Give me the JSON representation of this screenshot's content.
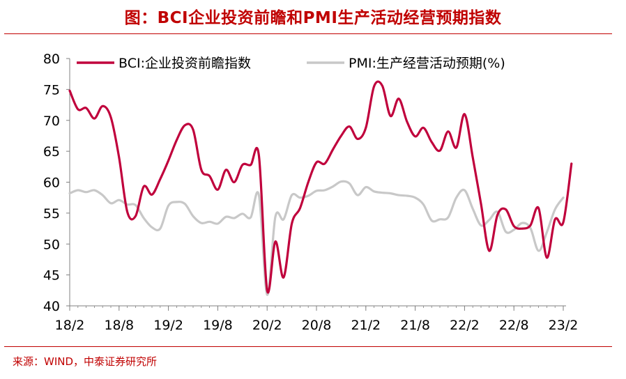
{
  "title": "图：BCI企业投资前瞻和PMI生产活动经营预期指数",
  "source": "来源：WIND，中泰证券研究所",
  "chart_data": {
    "type": "line",
    "title": "",
    "xlabel": "",
    "ylabel": "",
    "ylim": [
      40,
      80
    ],
    "yticks": [
      "40",
      "45",
      "50",
      "55",
      "60",
      "65",
      "70",
      "75",
      "80"
    ],
    "xticks": [
      "18/2",
      "18/8",
      "19/2",
      "19/8",
      "20/2",
      "20/8",
      "21/2",
      "21/8",
      "22/2",
      "22/8",
      "23/2"
    ],
    "x_range": [
      "18/2",
      "23/2"
    ],
    "legend_position": "top",
    "grid": false,
    "series": [
      {
        "name": "BCI:企业投资前瞻指数",
        "color": "#c0003c",
        "points": [
          [
            "18/2",
            74.8
          ],
          [
            "18/3",
            71.8
          ],
          [
            "18/4",
            72.0
          ],
          [
            "18/5",
            70.3
          ],
          [
            "18/6",
            72.3
          ],
          [
            "18/7",
            70.5
          ],
          [
            "18/8",
            64.0
          ],
          [
            "18/9",
            55.2
          ],
          [
            "18/10",
            54.5
          ],
          [
            "18/11",
            59.3
          ],
          [
            "18/12",
            58.0
          ],
          [
            "19/1",
            60.5
          ],
          [
            "19/2",
            63.5
          ],
          [
            "19/3",
            66.8
          ],
          [
            "19/4",
            69.2
          ],
          [
            "19/5",
            68.5
          ],
          [
            "19/6",
            62.0
          ],
          [
            "19/7",
            61.0
          ],
          [
            "19/8",
            58.8
          ],
          [
            "19/9",
            62.0
          ],
          [
            "19/10",
            60.0
          ],
          [
            "19/11",
            62.8
          ],
          [
            "19/12",
            62.8
          ],
          [
            "20/1",
            64.3
          ],
          [
            "20/2",
            42.5
          ],
          [
            "20/3",
            50.4
          ],
          [
            "20/4",
            44.6
          ],
          [
            "20/5",
            53.3
          ],
          [
            "20/6",
            55.8
          ],
          [
            "20/7",
            60.0
          ],
          [
            "20/8",
            63.2
          ],
          [
            "20/9",
            63.0
          ],
          [
            "20/10",
            65.3
          ],
          [
            "20/11",
            67.5
          ],
          [
            "20/12",
            69.0
          ],
          [
            "21/1",
            67.0
          ],
          [
            "21/2",
            68.8
          ],
          [
            "21/3",
            75.5
          ],
          [
            "21/4",
            75.6
          ],
          [
            "21/5",
            70.7
          ],
          [
            "21/6",
            73.5
          ],
          [
            "21/7",
            69.8
          ],
          [
            "21/8",
            67.4
          ],
          [
            "21/9",
            68.8
          ],
          [
            "21/10",
            66.5
          ],
          [
            "21/11",
            65.1
          ],
          [
            "21/12",
            68.2
          ],
          [
            "22/1",
            65.6
          ],
          [
            "22/2",
            71.0
          ],
          [
            "22/3",
            64.0
          ],
          [
            "22/4",
            56.5
          ],
          [
            "22/5",
            48.9
          ],
          [
            "22/6",
            54.7
          ],
          [
            "22/7",
            55.6
          ],
          [
            "22/8",
            52.9
          ],
          [
            "22/9",
            52.5
          ],
          [
            "22/10",
            53.0
          ],
          [
            "22/11",
            55.8
          ],
          [
            "22/12",
            47.8
          ],
          [
            "23/1",
            54.0
          ],
          [
            "23/2",
            53.5
          ],
          [
            "23/3",
            63.0
          ]
        ]
      },
      {
        "name": "PMI:生产经营活动预期(%)",
        "color": "#c8c8c8",
        "points": [
          [
            "18/2",
            58.2
          ],
          [
            "18/3",
            58.7
          ],
          [
            "18/4",
            58.4
          ],
          [
            "18/5",
            58.7
          ],
          [
            "18/6",
            57.9
          ],
          [
            "18/7",
            56.6
          ],
          [
            "18/8",
            57.1
          ],
          [
            "18/9",
            56.4
          ],
          [
            "18/10",
            56.3
          ],
          [
            "18/11",
            54.2
          ],
          [
            "18/12",
            52.7
          ],
          [
            "19/1",
            52.5
          ],
          [
            "19/2",
            56.2
          ],
          [
            "19/3",
            56.8
          ],
          [
            "19/4",
            56.5
          ],
          [
            "19/5",
            54.5
          ],
          [
            "19/6",
            53.4
          ],
          [
            "19/7",
            53.6
          ],
          [
            "19/8",
            53.3
          ],
          [
            "19/9",
            54.4
          ],
          [
            "19/10",
            54.2
          ],
          [
            "19/11",
            54.9
          ],
          [
            "19/12",
            54.3
          ],
          [
            "20/1",
            57.9
          ],
          [
            "20/2",
            41.8
          ],
          [
            "20/3",
            54.4
          ],
          [
            "20/4",
            54.0
          ],
          [
            "20/5",
            57.9
          ],
          [
            "20/6",
            57.5
          ],
          [
            "20/7",
            57.8
          ],
          [
            "20/8",
            58.6
          ],
          [
            "20/9",
            58.7
          ],
          [
            "20/10",
            59.3
          ],
          [
            "20/11",
            60.1
          ],
          [
            "20/12",
            59.8
          ],
          [
            "21/1",
            57.9
          ],
          [
            "21/2",
            59.2
          ],
          [
            "21/3",
            58.5
          ],
          [
            "21/4",
            58.3
          ],
          [
            "21/5",
            58.2
          ],
          [
            "21/6",
            57.9
          ],
          [
            "21/7",
            57.8
          ],
          [
            "21/8",
            57.5
          ],
          [
            "21/9",
            56.4
          ],
          [
            "21/10",
            53.8
          ],
          [
            "21/11",
            54.0
          ],
          [
            "21/12",
            54.3
          ],
          [
            "22/1",
            57.5
          ],
          [
            "22/2",
            58.7
          ],
          [
            "22/3",
            55.7
          ],
          [
            "22/4",
            53.0
          ],
          [
            "22/5",
            53.9
          ],
          [
            "22/6",
            55.2
          ],
          [
            "22/7",
            52.0
          ],
          [
            "22/8",
            52.3
          ],
          [
            "22/9",
            53.4
          ],
          [
            "22/10",
            52.6
          ],
          [
            "22/11",
            48.9
          ],
          [
            "22/12",
            51.9
          ],
          [
            "23/1",
            55.6
          ],
          [
            "23/2",
            57.5
          ]
        ]
      }
    ]
  }
}
